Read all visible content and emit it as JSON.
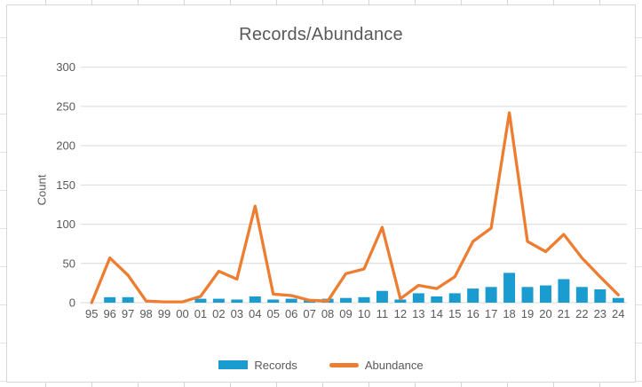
{
  "chart_data": {
    "type": "combo",
    "title": "Records/Abundance",
    "xlabel": "",
    "ylabel": "Count",
    "categories": [
      "95",
      "96",
      "97",
      "98",
      "99",
      "00",
      "01",
      "02",
      "03",
      "04",
      "05",
      "06",
      "07",
      "08",
      "09",
      "10",
      "11",
      "12",
      "13",
      "14",
      "15",
      "16",
      "17",
      "18",
      "19",
      "20",
      "21",
      "22",
      "23",
      "24"
    ],
    "series": [
      {
        "name": "Records",
        "type": "bar",
        "color": "#1b9cd0",
        "values": [
          0,
          7,
          7,
          0,
          0,
          0,
          5,
          5,
          4,
          8,
          4,
          5,
          4,
          5,
          6,
          7,
          15,
          4,
          12,
          8,
          12,
          18,
          20,
          38,
          20,
          22,
          30,
          20,
          17,
          6
        ]
      },
      {
        "name": "Abundance",
        "type": "line",
        "color": "#ed7d31",
        "values": [
          0,
          57,
          35,
          2,
          1,
          1,
          8,
          40,
          30,
          123,
          11,
          9,
          3,
          2,
          37,
          43,
          96,
          5,
          22,
          18,
          33,
          78,
          95,
          242,
          78,
          65,
          87,
          57,
          33,
          10
        ]
      }
    ],
    "ylim": [
      0,
      300
    ],
    "yticks": [
      0,
      50,
      100,
      150,
      200,
      250,
      300
    ],
    "grid": true,
    "legend_position": "bottom",
    "text_color": "#595959",
    "gridline_color": "#d9d9d9"
  }
}
